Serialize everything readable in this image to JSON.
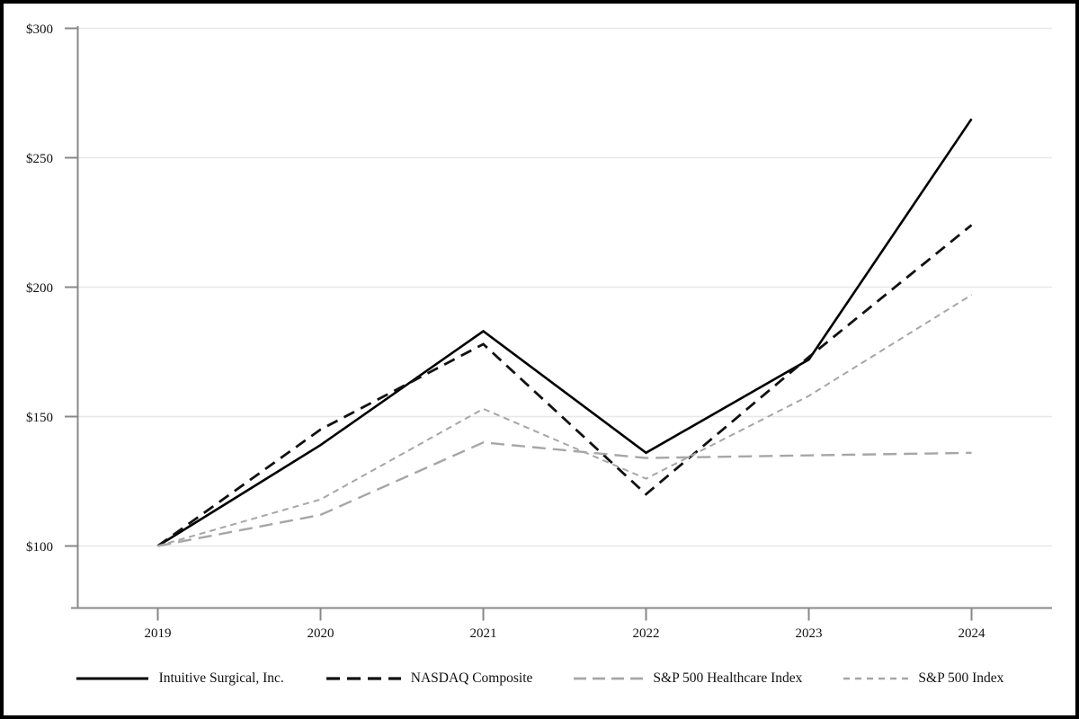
{
  "frame": {
    "border_color": "#000000",
    "background_color": "#ffffff"
  },
  "chart_data": {
    "type": "line",
    "title": "",
    "xlabel": "",
    "ylabel": "",
    "x_categories": [
      "2019",
      "2020",
      "2021",
      "2022",
      "2023",
      "2024"
    ],
    "y_ticks": [
      300,
      250,
      200,
      150,
      100
    ],
    "y_tick_labels": [
      "$300",
      "$250",
      "$200",
      "$150",
      "$100"
    ],
    "ylim": [
      76,
      300
    ],
    "grid": "horizontal-only",
    "grid_color": "#e8e8e8",
    "axis_color": "#888888",
    "legend_position": "bottom-center",
    "series": [
      {
        "name": "Intuitive Surgical, Inc.",
        "color": "#000000",
        "line_style": "solid",
        "dash": "",
        "legend_dash": "",
        "width": 2.6,
        "values": [
          100,
          139,
          183,
          136,
          172,
          265
        ]
      },
      {
        "name": "NASDAQ Composite",
        "color": "#111111",
        "line_style": "dashed",
        "dash": "13,8",
        "legend_dash": "15,8",
        "width": 2.8,
        "values": [
          100,
          145,
          178,
          120,
          173,
          224
        ]
      },
      {
        "name": "S&P 500 Healthcare Index",
        "color": "#a6a6a6",
        "line_style": "long-dash",
        "dash": "15,8",
        "legend_dash": "14,7",
        "width": 2.4,
        "values": [
          100,
          112,
          140,
          134,
          135,
          136
        ]
      },
      {
        "name": "S&P 500 Index",
        "color": "#a6a6a6",
        "line_style": "short-dash",
        "dash": "7,5",
        "legend_dash": "7,6",
        "width": 2,
        "values": [
          100,
          118,
          153,
          126,
          158,
          197
        ]
      }
    ]
  }
}
